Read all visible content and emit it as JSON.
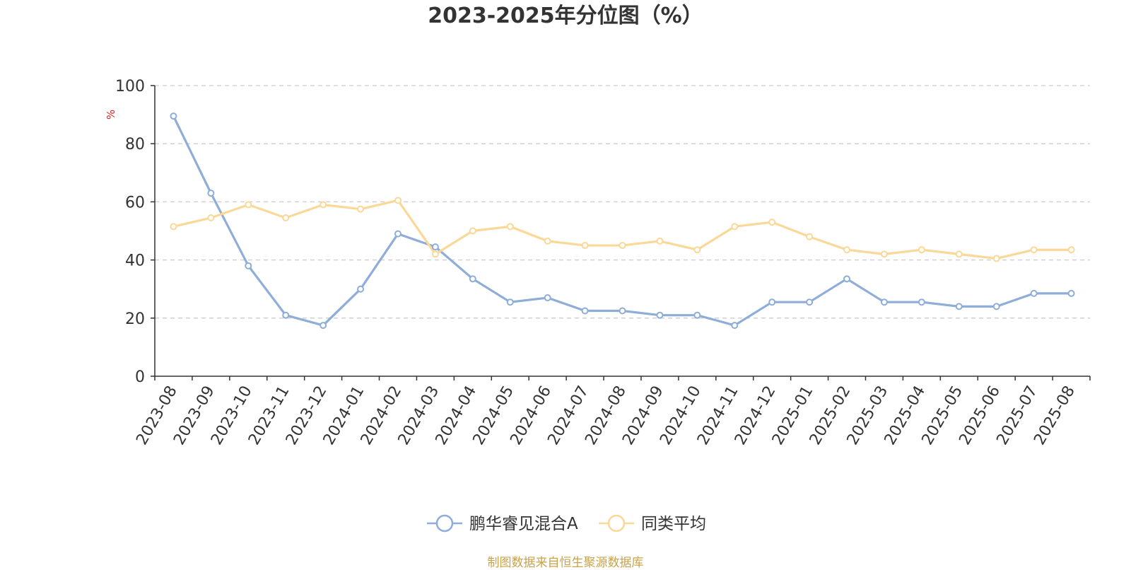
{
  "chart_data": {
    "type": "line",
    "title": "2023-2025年分位图（%）",
    "ylabel": "%",
    "xlabel": "",
    "ylim": [
      0,
      100
    ],
    "yticks": [
      0,
      20,
      40,
      60,
      80,
      100
    ],
    "grid": true,
    "legend_position": "bottom-center",
    "categories": [
      "2023-08",
      "2023-09",
      "2023-10",
      "2023-11",
      "2023-12",
      "2024-01",
      "2024-02",
      "2024-03",
      "2024-04",
      "2024-05",
      "2024-06",
      "2024-07",
      "2024-08",
      "2024-09",
      "2024-10",
      "2024-11",
      "2024-12",
      "2025-01",
      "2025-02",
      "2025-03",
      "2025-04",
      "2025-05",
      "2025-06",
      "2025-07",
      "2025-08"
    ],
    "series": [
      {
        "name": "鹏华睿见混合A",
        "color": "#8eadd8",
        "values": [
          89.5,
          63,
          38,
          21,
          17.5,
          30,
          49,
          44.5,
          33.5,
          25.5,
          27,
          22.5,
          22.5,
          21,
          21,
          17.5,
          25.5,
          25.5,
          33.5,
          25.5,
          25.5,
          24,
          24,
          28.5,
          28.5
        ]
      },
      {
        "name": "同类平均",
        "color": "#fad898",
        "values": [
          51.5,
          54.5,
          59,
          54.5,
          59,
          57.5,
          60.5,
          42,
          50,
          51.5,
          46.5,
          45,
          45,
          46.5,
          43.5,
          51.5,
          53,
          48,
          43.5,
          42,
          43.5,
          42,
          40.5,
          43.5,
          43.5
        ]
      }
    ]
  },
  "colors": {
    "axis": "#333333",
    "grid": "#cccccc",
    "ylabel": "#e02020",
    "source": "#c9a24a"
  },
  "source_note": "制图数据来自恒生聚源数据库"
}
